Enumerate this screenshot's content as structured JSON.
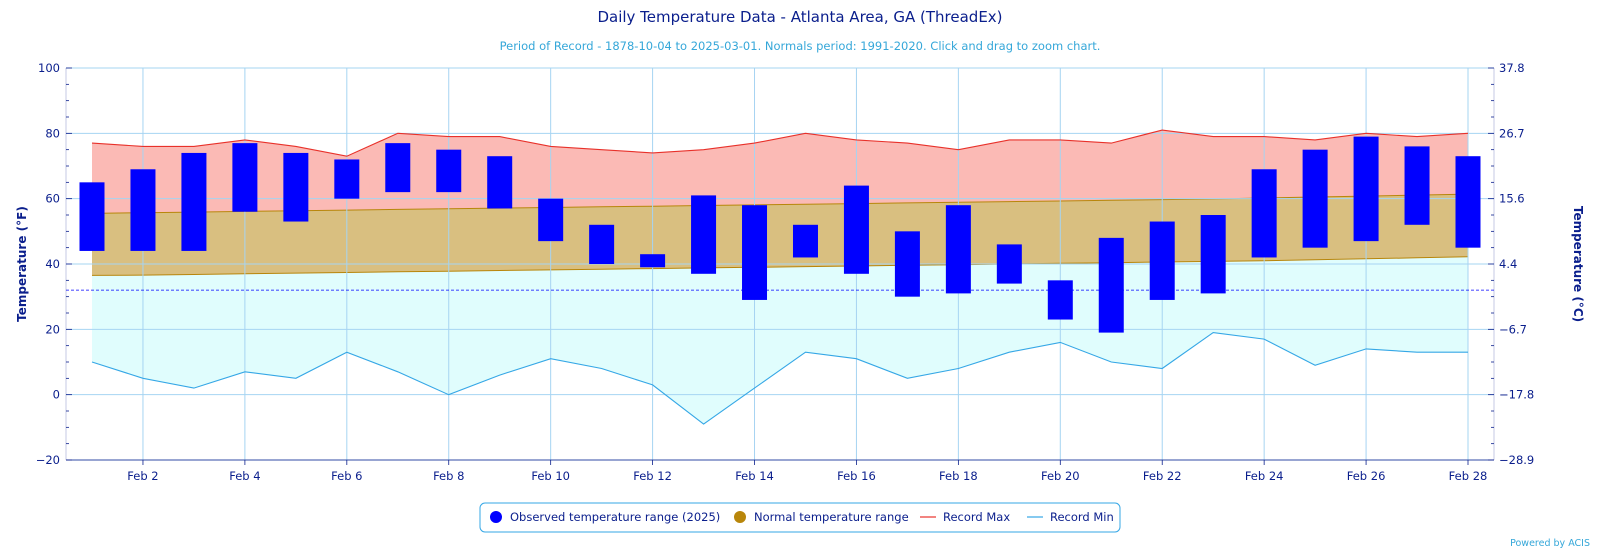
{
  "chart_data": {
    "type": "bar",
    "title": "Daily Temperature Data - Atlanta Area, GA (ThreadEx)",
    "subtitle": "Period of Record - 1878-10-04 to 2025-03-01. Normals period: 1991-2020. Click and drag to zoom chart.",
    "ylabel": "Temperature (°F)",
    "ylabel_right": "Temperature (°C)",
    "ylim": [
      -20,
      100
    ],
    "y_ticks": [
      "100",
      "80",
      "60",
      "40",
      "20",
      "0",
      "−20"
    ],
    "y_ticks_right": [
      "37.8",
      "26.7",
      "15.6",
      "4.4",
      "−6.7",
      "−17.8",
      "−28.9"
    ],
    "x_tick_labels": [
      "Feb 2",
      "Feb 4",
      "Feb 6",
      "Feb 8",
      "Feb 10",
      "Feb 12",
      "Feb 14",
      "Feb 16",
      "Feb 18",
      "Feb 20",
      "Feb 22",
      "Feb 24",
      "Feb 26",
      "Feb 28"
    ],
    "x_tick_days": [
      2,
      4,
      6,
      8,
      10,
      12,
      14,
      16,
      18,
      20,
      22,
      24,
      26,
      28
    ],
    "days": [
      1,
      2,
      3,
      4,
      5,
      6,
      7,
      8,
      9,
      10,
      11,
      12,
      13,
      14,
      15,
      16,
      17,
      18,
      19,
      20,
      21,
      22,
      23,
      24,
      25,
      26,
      27,
      28
    ],
    "freezing_line": 32,
    "grid": true,
    "legend_position": "bottom-center",
    "series": [
      {
        "name": "Observed temperature range (2025)",
        "color": "#0000ff",
        "low": [
          44,
          44,
          44,
          56,
          53,
          60,
          62,
          62,
          57,
          47,
          40,
          39,
          37,
          29,
          42,
          37,
          30,
          31,
          34,
          23,
          19,
          29,
          31,
          42,
          45,
          47,
          52,
          45
        ],
        "high": [
          65,
          69,
          74,
          77,
          74,
          72,
          77,
          75,
          73,
          60,
          52,
          43,
          61,
          58,
          52,
          64,
          50,
          58,
          46,
          35,
          48,
          53,
          55,
          69,
          75,
          79,
          76,
          73
        ]
      },
      {
        "name": "Normal temperature range",
        "color": "#b8860b",
        "low": [
          36.5,
          36.6,
          36.8,
          37.0,
          37.2,
          37.4,
          37.6,
          37.8,
          38.0,
          38.2,
          38.4,
          38.6,
          38.8,
          39.0,
          39.2,
          39.4,
          39.6,
          39.8,
          40.0,
          40.2,
          40.4,
          40.6,
          40.8,
          41.0,
          41.3,
          41.6,
          41.9,
          42.2
        ],
        "high": [
          55.5,
          55.7,
          55.9,
          56.1,
          56.3,
          56.5,
          56.7,
          56.9,
          57.1,
          57.3,
          57.5,
          57.7,
          57.9,
          58.1,
          58.3,
          58.5,
          58.7,
          58.9,
          59.1,
          59.3,
          59.5,
          59.7,
          59.9,
          60.2,
          60.5,
          60.8,
          61.1,
          61.4
        ]
      },
      {
        "name": "Record Max",
        "color": "#e8312a",
        "values": [
          77,
          76,
          76,
          78,
          76,
          73,
          80,
          79,
          79,
          76,
          75,
          74,
          75,
          77,
          80,
          78,
          77,
          75,
          78,
          78,
          77,
          81,
          79,
          79,
          78,
          80,
          79,
          80
        ]
      },
      {
        "name": "Record Min",
        "color": "#35a7e6",
        "values": [
          10,
          5,
          2,
          7,
          5,
          13,
          7,
          0,
          6,
          11,
          8,
          3,
          -9,
          2,
          13,
          11,
          5,
          8,
          13,
          16,
          10,
          8,
          19,
          17,
          9,
          14,
          13,
          13
        ]
      }
    ]
  },
  "credit": "Powered by ACIS"
}
